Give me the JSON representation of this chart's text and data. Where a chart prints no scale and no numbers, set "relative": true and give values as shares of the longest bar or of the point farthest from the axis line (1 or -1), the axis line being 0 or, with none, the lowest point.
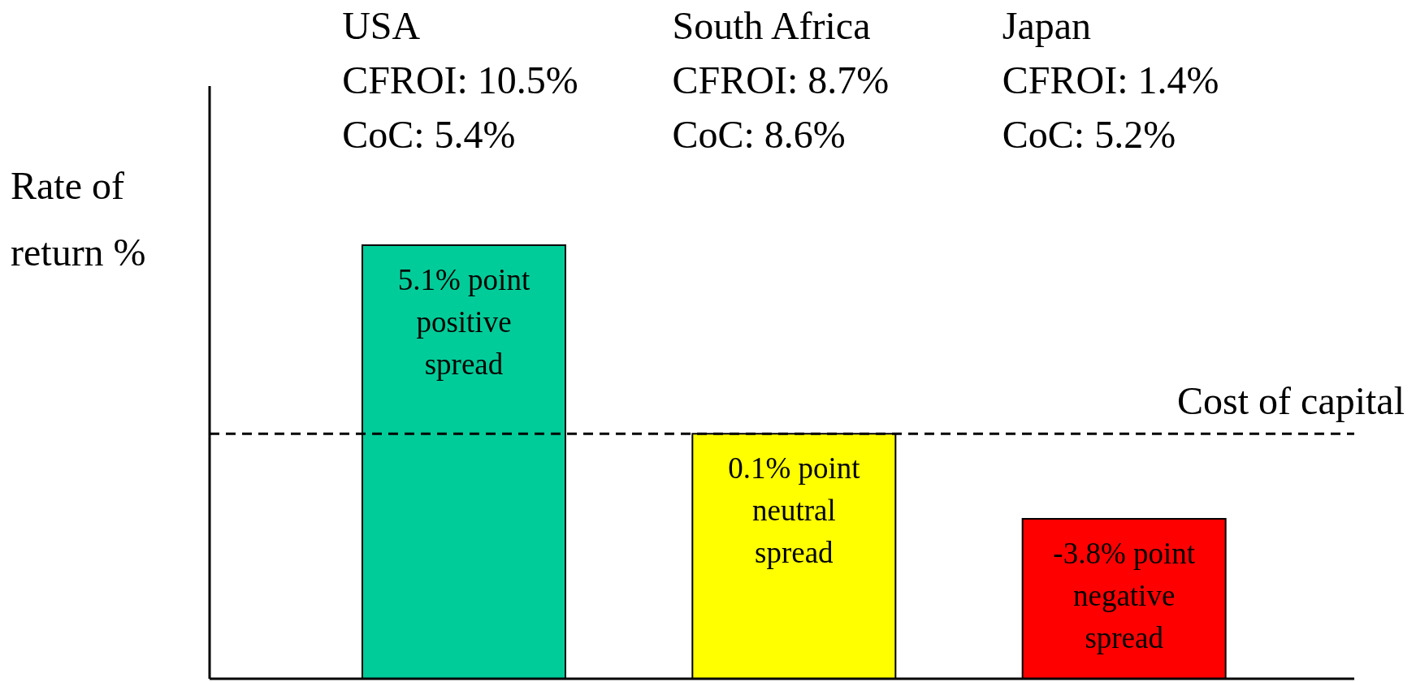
{
  "chart_data": {
    "type": "bar",
    "relative": true,
    "ylabel": "Rate of\nreturn %",
    "categories": [
      "USA\nCFROI: 10.5%\nCoC: 5.4%",
      "South Africa\nCFROI: 8.7%\nCoC: 8.6%",
      "Japan\nCFROI: 1.4%\nCoC: 5.2%"
    ],
    "values": [
      1,
      0.565,
      0.369
    ],
    "colors": [
      "#00cc99",
      "#ffff00",
      "#ff0000"
    ],
    "annotations": [
      "5.1% point\npositive\nspread",
      "0.1% point\nneutral\nspread",
      "-3.8% point\nnegative\nspread"
    ],
    "ref_lines": [
      {
        "axis": "y",
        "value": 0.565,
        "label": "Cost of capital",
        "line_style": "dashed",
        "color": "#000000"
      }
    ]
  }
}
